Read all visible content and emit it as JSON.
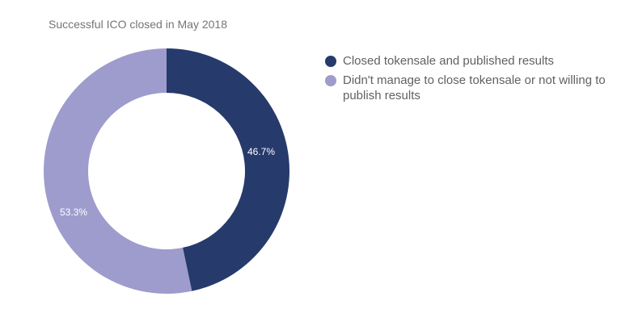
{
  "chart_data": {
    "type": "pie",
    "subtype": "donut",
    "title": "Successful ICO closed in May 2018",
    "categories": [
      "Closed tokensale and published results",
      "Didn't manage to close tokensale or not willing to publish results"
    ],
    "values": [
      46.7,
      53.3
    ],
    "labels": [
      "46.7%",
      "53.3%"
    ],
    "colors": [
      "#263a6b",
      "#9e9ccd"
    ],
    "legend_position": "right"
  },
  "title": "Successful ICO closed in May 2018",
  "legend": [
    {
      "label": "Closed tokensale and published results",
      "color": "#263a6b"
    },
    {
      "label": "Didn't manage to close tokensale or not willing to publish results",
      "color": "#9e9ccd"
    }
  ],
  "slice_labels": [
    "46.7%",
    "53.3%"
  ]
}
